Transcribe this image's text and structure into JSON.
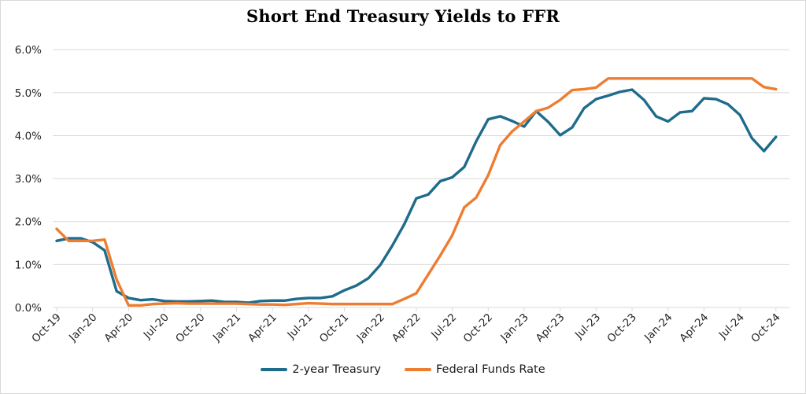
{
  "chart_data": {
    "type": "line",
    "title": "Short End Treasury Yields to FFR",
    "xlabel": "",
    "ylabel": "",
    "ylim": [
      0,
      6
    ],
    "y_unit": "percent",
    "grid": true,
    "grid_color": "#d9d9d9",
    "legend_position": "bottom",
    "y_tick_labels": [
      "0.0%",
      "1.0%",
      "2.0%",
      "3.0%",
      "4.0%",
      "5.0%",
      "6.0%"
    ],
    "x_tick_labels": [
      "Oct-19",
      "Jan-20",
      "Apr-20",
      "Jul-20",
      "Oct-20",
      "Jan-21",
      "Apr-21",
      "Jul-21",
      "Oct-21",
      "Jan-22",
      "Apr-22",
      "Jul-22",
      "Oct-22",
      "Jan-23",
      "Apr-23",
      "Jul-23",
      "Oct-23",
      "Jan-24",
      "Apr-24",
      "Jul-24",
      "Oct-24"
    ],
    "x": [
      "Oct-19",
      "Nov-19",
      "Dec-19",
      "Jan-20",
      "Feb-20",
      "Mar-20",
      "Apr-20",
      "May-20",
      "Jun-20",
      "Jul-20",
      "Aug-20",
      "Sep-20",
      "Oct-20",
      "Nov-20",
      "Dec-20",
      "Jan-21",
      "Feb-21",
      "Mar-21",
      "Apr-21",
      "May-21",
      "Jun-21",
      "Jul-21",
      "Aug-21",
      "Sep-21",
      "Oct-21",
      "Nov-21",
      "Dec-21",
      "Jan-22",
      "Feb-22",
      "Mar-22",
      "Apr-22",
      "May-22",
      "Jun-22",
      "Jul-22",
      "Aug-22",
      "Sep-22",
      "Oct-22",
      "Nov-22",
      "Dec-22",
      "Jan-23",
      "Feb-23",
      "Mar-23",
      "Apr-23",
      "May-23",
      "Jun-23",
      "Jul-23",
      "Aug-23",
      "Sep-23",
      "Oct-23",
      "Nov-23",
      "Dec-23",
      "Jan-24",
      "Feb-24",
      "Mar-24",
      "Apr-24",
      "May-24",
      "Jun-24",
      "Jul-24",
      "Aug-24",
      "Sep-24",
      "Oct-24"
    ],
    "series": [
      {
        "name": "2-year Treasury",
        "color": "#1f6b8c",
        "values": [
          1.55,
          1.61,
          1.61,
          1.52,
          1.33,
          0.38,
          0.22,
          0.17,
          0.19,
          0.15,
          0.14,
          0.14,
          0.15,
          0.16,
          0.13,
          0.13,
          0.11,
          0.15,
          0.16,
          0.16,
          0.2,
          0.22,
          0.22,
          0.26,
          0.4,
          0.51,
          0.68,
          0.99,
          1.44,
          1.94,
          2.54,
          2.63,
          2.94,
          3.03,
          3.27,
          3.87,
          4.38,
          4.45,
          4.34,
          4.21,
          4.57,
          4.32,
          4.01,
          4.19,
          4.64,
          4.85,
          4.93,
          5.02,
          5.07,
          4.83,
          4.45,
          4.33,
          4.54,
          4.57,
          4.87,
          4.85,
          4.73,
          4.48,
          3.94,
          3.64,
          3.97
        ]
      },
      {
        "name": "Federal Funds Rate",
        "color": "#ed7d31",
        "values": [
          1.83,
          1.55,
          1.55,
          1.55,
          1.58,
          0.65,
          0.05,
          0.05,
          0.08,
          0.09,
          0.1,
          0.09,
          0.09,
          0.09,
          0.09,
          0.09,
          0.08,
          0.07,
          0.07,
          0.06,
          0.08,
          0.1,
          0.09,
          0.08,
          0.08,
          0.08,
          0.08,
          0.08,
          0.08,
          0.2,
          0.33,
          0.77,
          1.21,
          1.68,
          2.33,
          2.56,
          3.08,
          3.78,
          4.1,
          4.33,
          4.57,
          4.65,
          4.83,
          5.06,
          5.08,
          5.12,
          5.33,
          5.33,
          5.33,
          5.33,
          5.33,
          5.33,
          5.33,
          5.33,
          5.33,
          5.33,
          5.33,
          5.33,
          5.33,
          5.13,
          5.08
        ]
      }
    ]
  }
}
